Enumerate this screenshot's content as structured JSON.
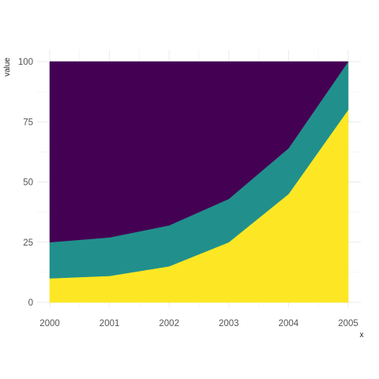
{
  "chart_data": {
    "type": "area",
    "stacked": "percent",
    "x": [
      2000,
      2001,
      2002,
      2003,
      2004,
      2005
    ],
    "series": [
      {
        "values": [
          10,
          11,
          15,
          25,
          45,
          80
        ],
        "color": "#FDE725"
      },
      {
        "values": [
          15,
          16,
          17,
          18,
          19,
          20
        ],
        "color": "#21908C"
      },
      {
        "values": [
          75,
          73,
          68,
          57,
          36,
          0
        ],
        "color": "#440154"
      }
    ],
    "xlabel": "x",
    "ylabel": "value",
    "xlim": [
      2000,
      2005
    ],
    "ylim": [
      0,
      100
    ],
    "x_ticks": [
      "2000",
      "2001",
      "2002",
      "2003",
      "2004",
      "2005"
    ],
    "y_ticks": [
      "0",
      "25",
      "50",
      "75",
      "100"
    ],
    "grid": true
  }
}
